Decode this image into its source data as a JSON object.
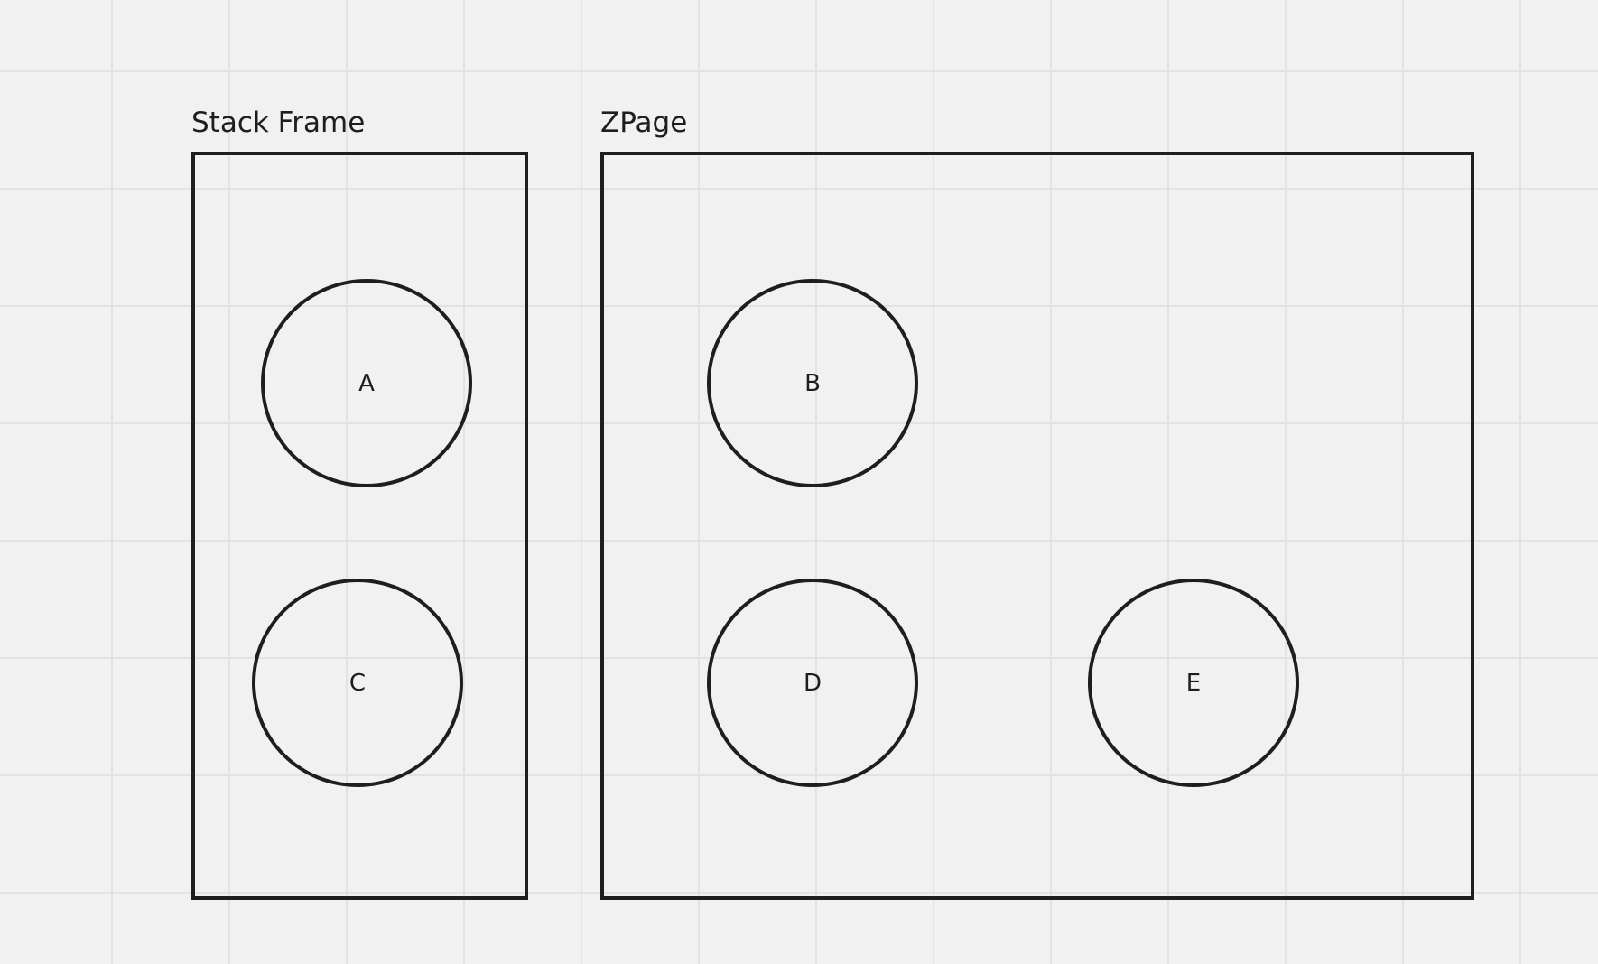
{
  "frames": {
    "stack": {
      "title": "Stack Frame"
    },
    "zpage": {
      "title": "ZPage"
    }
  },
  "nodes": {
    "a": {
      "label": "A"
    },
    "b": {
      "label": "B"
    },
    "c": {
      "label": "C"
    },
    "d": {
      "label": "D"
    },
    "e": {
      "label": "E"
    }
  },
  "colors": {
    "canvas_background": "#f1f1f1",
    "grid_line": "#e2e2e2",
    "stroke": "#1e1e1e",
    "text": "#1e1e1e"
  }
}
